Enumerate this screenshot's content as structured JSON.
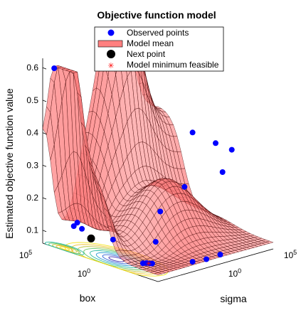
{
  "chart_data": {
    "type": "surface",
    "title": "Objective function model",
    "zlabel": "Estimated objective function value",
    "xlabel": "box",
    "ylabel": "sigma",
    "zlim": [
      0.06,
      0.62
    ],
    "z_ticks": [
      "0.1",
      "0.2",
      "0.3",
      "0.4",
      "0.5",
      "0.6"
    ],
    "box_ticks": [
      {
        "base": "10",
        "exp": "5"
      },
      {
        "base": "10",
        "exp": "0"
      }
    ],
    "sigma_ticks": [
      {
        "base": "10",
        "exp": "0"
      },
      {
        "base": "10",
        "exp": "5"
      }
    ],
    "scale": "log",
    "legend": {
      "placement": "top-center",
      "items": [
        {
          "label": "Observed points",
          "marker": "circle",
          "color": "#0000ff"
        },
        {
          "label": "Model mean",
          "marker": "patch",
          "color": "#ff7f7f"
        },
        {
          "label": "Next point",
          "marker": "circle",
          "color": "#000000"
        },
        {
          "label": "Model minimum feasible",
          "marker": "asterisk",
          "color": "#ff0000"
        }
      ]
    },
    "observed_points": [
      {
        "value": 0.61
      },
      {
        "value": 0.55
      },
      {
        "value": 0.39
      },
      {
        "value": 0.37
      },
      {
        "value": 0.34
      },
      {
        "value": 0.31
      },
      {
        "value": 0.28
      },
      {
        "value": 0.23
      },
      {
        "value": 0.14
      },
      {
        "value": 0.15
      },
      {
        "value": 0.14
      },
      {
        "value": 0.13
      },
      {
        "value": 0.11
      },
      {
        "value": 0.09
      },
      {
        "value": 0.09
      },
      {
        "value": 0.09
      },
      {
        "value": 0.09
      },
      {
        "value": 0.08
      },
      {
        "value": 0.08
      },
      {
        "value": 0.08
      }
    ],
    "next_point": {
      "value": 0.12
    },
    "model_minimum_feasible": {
      "value": 0.09
    },
    "colors": {
      "surface_fill": "#ff7f7f",
      "surface_edge": "#3a0000",
      "observed": "#0000ff",
      "next": "#000000",
      "minimum": "#ff0000"
    }
  }
}
